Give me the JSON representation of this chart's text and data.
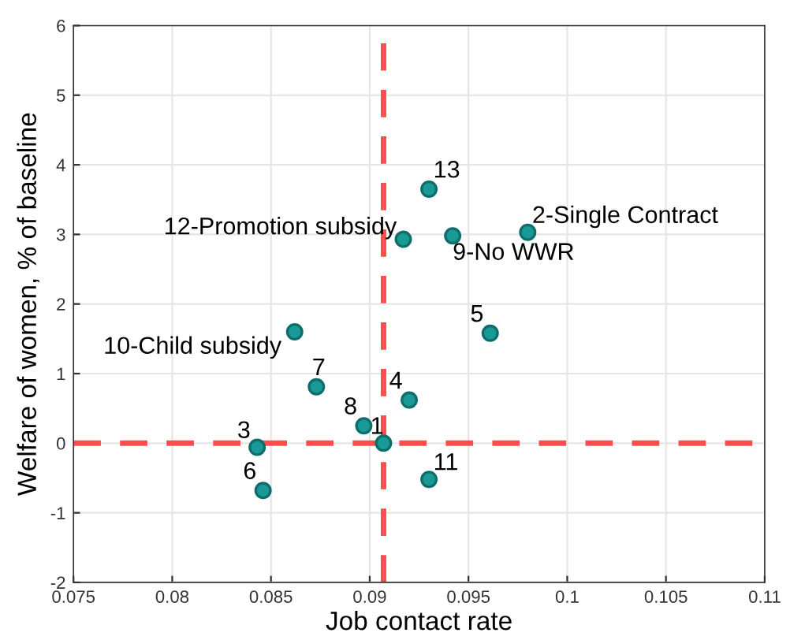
{
  "chart_data": {
    "type": "scatter",
    "xlabel": "Job contact rate",
    "ylabel": "Welfare of women, % of baseline",
    "x": [
      0.0907,
      0.098,
      0.0843,
      0.092,
      0.0961,
      0.0846,
      0.0873,
      0.0897,
      0.0942,
      0.0862,
      0.093,
      0.0917,
      0.093
    ],
    "series": [
      {
        "color": "#1a9a96",
        "values": [
          0,
          3.03,
          -0.06,
          0.62,
          1.58,
          -0.68,
          0.81,
          0.25,
          2.98,
          1.6,
          -0.52,
          2.93,
          3.65
        ]
      }
    ],
    "marker": "circle",
    "annotations": [
      {
        "text": "1",
        "x": 0.0907,
        "y": 0
      },
      {
        "text": "2-Single Contract",
        "x": 0.098,
        "y": 3.03
      },
      {
        "text": "3",
        "x": 0.0843,
        "y": -0.06
      },
      {
        "text": "4",
        "x": 0.092,
        "y": 0.62
      },
      {
        "text": "5",
        "x": 0.0961,
        "y": 1.58
      },
      {
        "text": "6",
        "x": 0.0846,
        "y": -0.68
      },
      {
        "text": "7",
        "x": 0.0873,
        "y": 0.81
      },
      {
        "text": "8",
        "x": 0.0897,
        "y": 0.25
      },
      {
        "text": "9-No WWR",
        "x": 0.0942,
        "y": 2.98
      },
      {
        "text": "10-Child subsidy",
        "x": 0.0862,
        "y": 1.6
      },
      {
        "text": "11",
        "x": 0.093,
        "y": -0.52
      },
      {
        "text": "12-Promotion subsidy",
        "x": 0.0917,
        "y": 2.93
      },
      {
        "text": "13",
        "x": 0.093,
        "y": 3.65
      }
    ],
    "ref_lines": [
      {
        "axis": "x",
        "value": 0.0907,
        "color": "#ff4d4d",
        "line_style": "dashed"
      },
      {
        "axis": "y",
        "value": 0,
        "color": "#ff4d4d",
        "line_style": "dashed"
      }
    ],
    "xlim": [
      0.075,
      0.11
    ],
    "xticks": [
      0.075,
      0.08,
      0.085,
      0.09,
      0.095,
      0.1,
      0.105,
      0.11
    ],
    "ylim": [
      -2,
      6
    ],
    "yticks": [
      -2,
      -1,
      0,
      1,
      2,
      3,
      4,
      5,
      6
    ],
    "grid": true
  }
}
